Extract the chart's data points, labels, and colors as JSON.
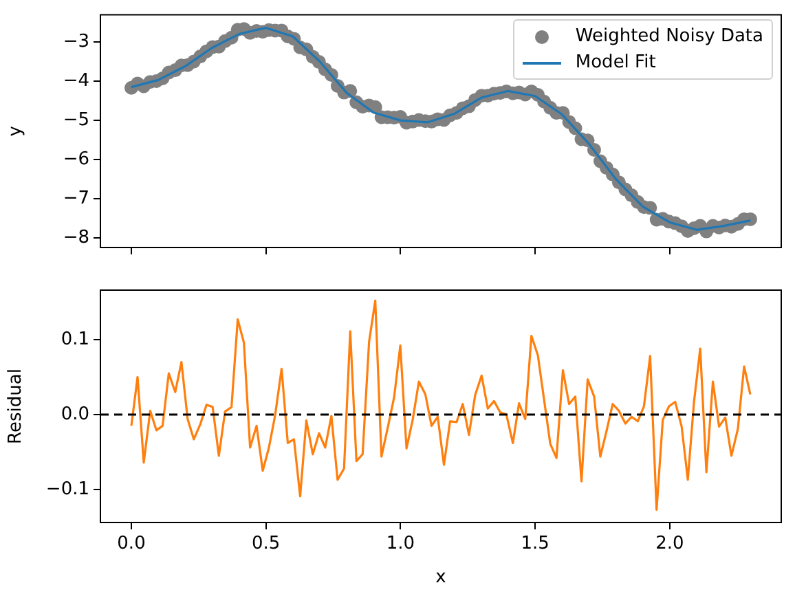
{
  "chart_data": [
    {
      "type": "scatter",
      "ylabel": "y",
      "legend": "top right",
      "tick_labels": "y",
      "grid": false,
      "xlim": [
        -0.115,
        2.414
      ],
      "ylim": [
        -8.24,
        -2.31
      ],
      "xticks": [
        {
          "value": 0,
          "label": null
        },
        {
          "value": 0.5,
          "label": null
        },
        {
          "value": 1,
          "label": null
        },
        {
          "value": 1.5,
          "label": null
        },
        {
          "value": 2,
          "label": null
        }
      ],
      "yticks": [
        {
          "value": -3,
          "label": "−3"
        },
        {
          "value": -4,
          "label": "−4"
        },
        {
          "value": -5,
          "label": "−5"
        },
        {
          "value": -6,
          "label": "−6"
        },
        {
          "value": -7,
          "label": "−7"
        },
        {
          "value": -8,
          "label": "−8"
        }
      ],
      "x": [
        0,
        0.023,
        0.046,
        0.07,
        0.093,
        0.116,
        0.139,
        0.163,
        0.186,
        0.209,
        0.232,
        0.256,
        0.279,
        0.302,
        0.325,
        0.348,
        0.372,
        0.395,
        0.418,
        0.441,
        0.465,
        0.488,
        0.511,
        0.534,
        0.558,
        0.581,
        0.604,
        0.627,
        0.65,
        0.674,
        0.697,
        0.72,
        0.743,
        0.766,
        0.79,
        0.813,
        0.836,
        0.859,
        0.883,
        0.906,
        0.929,
        0.952,
        0.976,
        0.999,
        1.022,
        1.045,
        1.068,
        1.092,
        1.115,
        1.138,
        1.161,
        1.184,
        1.208,
        1.231,
        1.254,
        1.277,
        1.301,
        1.324,
        1.347,
        1.37,
        1.393,
        1.417,
        1.44,
        1.463,
        1.486,
        1.51,
        1.533,
        1.556,
        1.579,
        1.603,
        1.626,
        1.649,
        1.672,
        1.695,
        1.719,
        1.742,
        1.765,
        1.788,
        1.811,
        1.835,
        1.858,
        1.881,
        1.904,
        1.927,
        1.951,
        1.974,
        1.997,
        2.02,
        2.044,
        2.067,
        2.09,
        2.113,
        2.136,
        2.16,
        2.183,
        2.206,
        2.229,
        2.253,
        2.276,
        2.299
      ],
      "series": [
        {
          "name": "Weighted Noisy Data",
          "type": "scatter",
          "marker": "circle",
          "color": "#808080",
          "values": [
            -4.17,
            -4.06,
            -4.13,
            -4.02,
            -4.0,
            -3.93,
            -3.78,
            -3.72,
            -3.6,
            -3.59,
            -3.5,
            -3.37,
            -3.24,
            -3.13,
            -3.12,
            -2.98,
            -2.89,
            -2.69,
            -2.67,
            -2.77,
            -2.72,
            -2.74,
            -2.7,
            -2.71,
            -2.71,
            -2.86,
            -2.92,
            -3.14,
            -3.19,
            -3.38,
            -3.51,
            -3.7,
            -3.84,
            -4.12,
            -4.29,
            -4.25,
            -4.54,
            -4.65,
            -4.62,
            -4.66,
            -4.92,
            -4.92,
            -4.93,
            -4.91,
            -5.06,
            -5.03,
            -4.99,
            -5.02,
            -5.03,
            -4.97,
            -4.99,
            -4.87,
            -4.81,
            -4.69,
            -4.64,
            -4.48,
            -4.37,
            -4.37,
            -4.32,
            -4.3,
            -4.26,
            -4.31,
            -4.29,
            -4.34,
            -4.26,
            -4.35,
            -4.52,
            -4.68,
            -4.81,
            -4.81,
            -5.04,
            -5.2,
            -5.48,
            -5.51,
            -5.75,
            -6.04,
            -6.21,
            -6.38,
            -6.58,
            -6.76,
            -6.91,
            -7.08,
            -7.21,
            -7.23,
            -7.53,
            -7.51,
            -7.58,
            -7.62,
            -7.7,
            -7.82,
            -7.75,
            -7.69,
            -7.83,
            -7.69,
            -7.73,
            -7.68,
            -7.71,
            -7.64,
            -7.52,
            -7.52
          ]
        },
        {
          "name": "Model Fit",
          "type": "line",
          "color": "#1f77b4",
          "x": [
            0,
            0.1,
            0.2,
            0.3,
            0.4,
            0.5,
            0.6,
            0.7,
            0.8,
            0.9,
            1.0,
            1.1,
            1.2,
            1.3,
            1.4,
            1.5,
            1.6,
            1.7,
            1.8,
            1.9,
            2.0,
            2.1,
            2.2,
            2.3
          ],
          "values": [
            -4.15,
            -3.97,
            -3.62,
            -3.15,
            -2.8,
            -2.64,
            -2.86,
            -3.5,
            -4.3,
            -4.8,
            -5.0,
            -5.05,
            -4.83,
            -4.42,
            -4.25,
            -4.38,
            -4.85,
            -5.6,
            -6.5,
            -7.2,
            -7.6,
            -7.79,
            -7.69,
            -7.55
          ]
        }
      ]
    },
    {
      "type": "line",
      "xlabel": "x",
      "ylabel": "Residual",
      "grid": false,
      "line_style": "solid",
      "xlim": [
        -0.115,
        2.414
      ],
      "ylim": [
        -0.144,
        0.166
      ],
      "xticks": [
        {
          "value": 0,
          "label": "0.0"
        },
        {
          "value": 0.5,
          "label": "0.5"
        },
        {
          "value": 1,
          "label": "1.0"
        },
        {
          "value": 1.5,
          "label": "1.5"
        },
        {
          "value": 2,
          "label": "2.0"
        }
      ],
      "yticks": [
        {
          "value": -0.1,
          "label": "−0.1"
        },
        {
          "value": 0,
          "label": "0.0"
        },
        {
          "value": 0.1,
          "label": "0.1"
        }
      ],
      "ref_lines": [
        {
          "axis": "y",
          "value": 0,
          "color": "#000000",
          "line_style": "dashed"
        }
      ],
      "x": [
        0,
        0.023,
        0.046,
        0.07,
        0.093,
        0.116,
        0.139,
        0.163,
        0.186,
        0.209,
        0.232,
        0.256,
        0.279,
        0.302,
        0.325,
        0.348,
        0.372,
        0.395,
        0.418,
        0.441,
        0.465,
        0.488,
        0.511,
        0.534,
        0.558,
        0.581,
        0.604,
        0.627,
        0.65,
        0.674,
        0.697,
        0.72,
        0.743,
        0.766,
        0.79,
        0.813,
        0.836,
        0.859,
        0.883,
        0.906,
        0.929,
        0.952,
        0.976,
        0.999,
        1.022,
        1.045,
        1.068,
        1.092,
        1.115,
        1.138,
        1.161,
        1.184,
        1.208,
        1.231,
        1.254,
        1.277,
        1.301,
        1.324,
        1.347,
        1.37,
        1.393,
        1.417,
        1.44,
        1.463,
        1.486,
        1.51,
        1.533,
        1.556,
        1.579,
        1.603,
        1.626,
        1.649,
        1.672,
        1.695,
        1.719,
        1.742,
        1.765,
        1.788,
        1.811,
        1.835,
        1.858,
        1.881,
        1.904,
        1.927,
        1.951,
        1.974,
        1.997,
        2.02,
        2.044,
        2.067,
        2.09,
        2.113,
        2.136,
        2.16,
        2.183,
        2.206,
        2.229,
        2.253,
        2.276,
        2.299
      ],
      "series": [
        {
          "color": "#ff7f0e",
          "values": [
            -0.015,
            0.05,
            -0.064,
            0.005,
            -0.021,
            -0.015,
            0.055,
            0.03,
            0.07,
            -0.006,
            -0.033,
            -0.013,
            0.013,
            0.01,
            -0.055,
            0.004,
            0.01,
            0.127,
            0.096,
            -0.044,
            -0.015,
            -0.075,
            -0.044,
            -0.001,
            0.061,
            -0.038,
            -0.033,
            -0.109,
            -0.008,
            -0.053,
            -0.025,
            -0.044,
            -0.002,
            -0.087,
            -0.072,
            0.111,
            -0.062,
            -0.053,
            0.097,
            0.152,
            -0.056,
            -0.018,
            0.023,
            0.092,
            -0.045,
            -0.007,
            0.044,
            0.027,
            -0.015,
            -0.003,
            -0.067,
            -0.009,
            -0.01,
            0.014,
            -0.027,
            0.026,
            0.052,
            0.008,
            0.018,
            0.003,
            0,
            -0.038,
            0.015,
            -0.006,
            0.105,
            0.079,
            0.02,
            -0.039,
            -0.058,
            0.059,
            0.014,
            0.024,
            -0.089,
            0.047,
            0.024,
            -0.056,
            -0.022,
            0.014,
            0.005,
            -0.012,
            -0.003,
            -0.009,
            0.011,
            0.078,
            -0.127,
            -0.007,
            0.011,
            0.017,
            -0.016,
            -0.087,
            0.017,
            0.088,
            -0.077,
            0.044,
            -0.016,
            -0.004,
            -0.055,
            -0.019,
            0.064,
            0.027
          ]
        }
      ]
    }
  ]
}
